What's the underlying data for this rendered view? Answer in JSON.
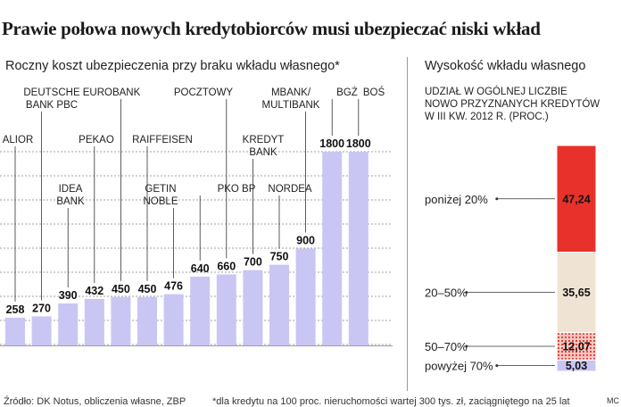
{
  "title": "Prawie połowa nowych kredytobiorców musi ubezpieczać niski wkład",
  "footer": {
    "source": "Źródło: DK Notus, obliczenia własne, ZBP",
    "note": "*dla kredytu na 100 proc. nieruchomości wartej 300 tys. zł, zaciągniętego na 25 lat",
    "credit": "MC"
  },
  "chart_data": [
    {
      "type": "bar",
      "title": "Roczny koszt ubezpieczenia przy braku wkładu własnego*",
      "categories": [
        "ALIOR",
        "DEUTSCHE BANK PBC",
        "IDEA BANK",
        "PEKAO",
        "EUROBANK",
        "RAIFFEISEN",
        "GETIN NOBLE",
        "PKO BP",
        "POCZTOWY",
        "KREDYT BANK",
        "NORDEA",
        "MBANK/ MULTIBANK",
        "BGŻ",
        "BOŚ"
      ],
      "values": [
        258,
        270,
        390,
        432,
        450,
        450,
        476,
        640,
        660,
        700,
        750,
        900,
        1800,
        1800
      ],
      "value_labels": [
        "258",
        "270",
        "390",
        "432",
        "450",
        "450",
        "476",
        "640",
        "660",
        "700",
        "750",
        "900",
        "1800",
        "1800"
      ],
      "label_levels": [
        1,
        0,
        2,
        1,
        0,
        1,
        2,
        2,
        0,
        1,
        2,
        0,
        0,
        0
      ],
      "ylim": [
        0,
        1950
      ],
      "grid": true,
      "bar_color": "#c9c6f4",
      "grid_color": "#a0a0a0",
      "xlabel": "",
      "ylabel": ""
    },
    {
      "type": "bar",
      "subtype": "stacked",
      "title": "Wysokość wkładu własnego",
      "subtitle": "UDZIAŁ W OGÓLNEJ LICZBIE\nNOWO PRZYZNANYCH KREDYTÓW\nW III KW. 2012 R. (PROC.)",
      "categories": [
        "poniżej 20%",
        "20–50%",
        "50–70%",
        "powyżej 70%"
      ],
      "values": [
        47.24,
        35.65,
        12.07,
        5.03
      ],
      "value_labels": [
        "47,24",
        "35,65",
        "12,07",
        "5,03"
      ],
      "colors": [
        "#e8312a",
        "#efe4d3",
        "#e8312a",
        "#c9c6f4"
      ],
      "patterns": [
        "solid",
        "solid",
        "dots",
        "solid"
      ],
      "legend": "none"
    }
  ]
}
